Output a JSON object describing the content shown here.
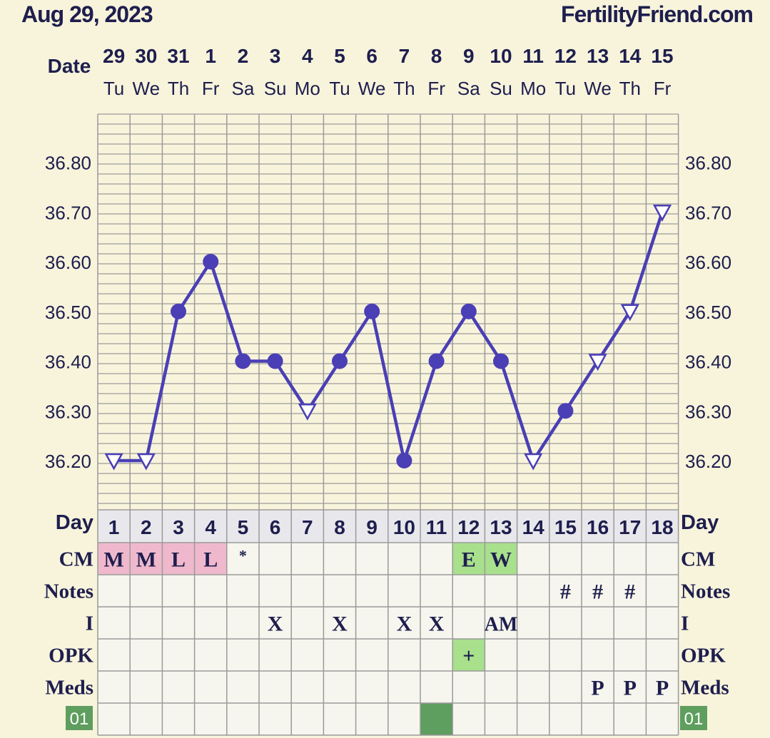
{
  "header": {
    "date": "Aug 29, 2023",
    "site": "FertilityFriend.com"
  },
  "labels": {
    "date": "Date",
    "day": "Day",
    "cm": "CM",
    "notes": "Notes",
    "intercourse": "I",
    "opk": "OPK",
    "meds": "Meds",
    "cycle_badge": "01"
  },
  "colors": {
    "line": "#4a3fb5",
    "grid": "#9a9a9a",
    "plot_bg": "#f8f4dc",
    "row_bg": "#f6f6ee",
    "day_row_bg": "#e8e8ec",
    "cm_pink": "#f0b8cc",
    "cm_green": "#a8e08c",
    "badge_green": "#5e9e5e",
    "text": "#1e1e4e"
  },
  "chart_data": {
    "type": "line",
    "title": "",
    "dates": [
      "29",
      "30",
      "31",
      "1",
      "2",
      "3",
      "4",
      "5",
      "6",
      "7",
      "8",
      "9",
      "10",
      "11",
      "12",
      "13",
      "14",
      "15"
    ],
    "weekdays": [
      "Tu",
      "We",
      "Th",
      "Fr",
      "Sa",
      "Su",
      "Mo",
      "Tu",
      "We",
      "Th",
      "Fr",
      "Sa",
      "Su",
      "Mo",
      "Tu",
      "We",
      "Th",
      "Fr"
    ],
    "cycle_days": [
      1,
      2,
      3,
      4,
      5,
      6,
      7,
      8,
      9,
      10,
      11,
      12,
      13,
      14,
      15,
      16,
      17,
      18
    ],
    "y_ticks": [
      "36.80",
      "36.70",
      "36.60",
      "36.50",
      "36.40",
      "36.30",
      "36.20"
    ],
    "ylim": [
      36.1,
      36.9
    ],
    "grid": true,
    "series": [
      {
        "values": [
          36.2,
          36.2,
          36.5,
          36.6,
          36.4,
          36.4,
          36.3,
          36.4,
          36.5,
          36.2,
          36.4,
          36.5,
          36.4,
          36.2,
          36.3,
          36.4,
          36.5,
          36.7
        ],
        "markers": [
          "open-triangle",
          "open-triangle",
          "filled-circle",
          "filled-circle",
          "filled-circle",
          "filled-circle",
          "open-triangle",
          "filled-circle",
          "filled-circle",
          "filled-circle",
          "filled-circle",
          "filled-circle",
          "filled-circle",
          "open-triangle",
          "filled-circle",
          "open-triangle",
          "open-triangle",
          "open-triangle"
        ]
      }
    ]
  },
  "rows": {
    "cm": [
      "M",
      "M",
      "L",
      "L",
      "*",
      "",
      "",
      "",
      "",
      "",
      "",
      "E",
      "W",
      "",
      "",
      "",
      "",
      ""
    ],
    "cm_color": [
      "pink",
      "pink",
      "pink",
      "pink",
      "",
      "",
      "",
      "",
      "",
      "",
      "",
      "green",
      "green",
      "",
      "",
      "",
      "",
      ""
    ],
    "notes": [
      "",
      "",
      "",
      "",
      "",
      "",
      "",
      "",
      "",
      "",
      "",
      "",
      "",
      "",
      "#",
      "#",
      "#",
      ""
    ],
    "intercourse": [
      "",
      "",
      "",
      "",
      "",
      "X",
      "",
      "X",
      "",
      "X",
      "X",
      "",
      "AM",
      "",
      "",
      "",
      "",
      ""
    ],
    "opk": [
      "",
      "",
      "",
      "",
      "",
      "",
      "",
      "",
      "",
      "",
      "",
      "+",
      "",
      "",
      "",
      "",
      "",
      ""
    ],
    "opk_color": [
      "",
      "",
      "",
      "",
      "",
      "",
      "",
      "",
      "",
      "",
      "",
      "green",
      "",
      "",
      "",
      "",
      "",
      ""
    ],
    "meds": [
      "",
      "",
      "",
      "",
      "",
      "",
      "",
      "",
      "",
      "",
      "",
      "",
      "",
      "",
      "",
      "P",
      "P",
      "P"
    ],
    "bottom_highlight": [
      false,
      false,
      false,
      false,
      false,
      false,
      false,
      false,
      false,
      false,
      true,
      false,
      false,
      false,
      false,
      false,
      false,
      false
    ]
  }
}
